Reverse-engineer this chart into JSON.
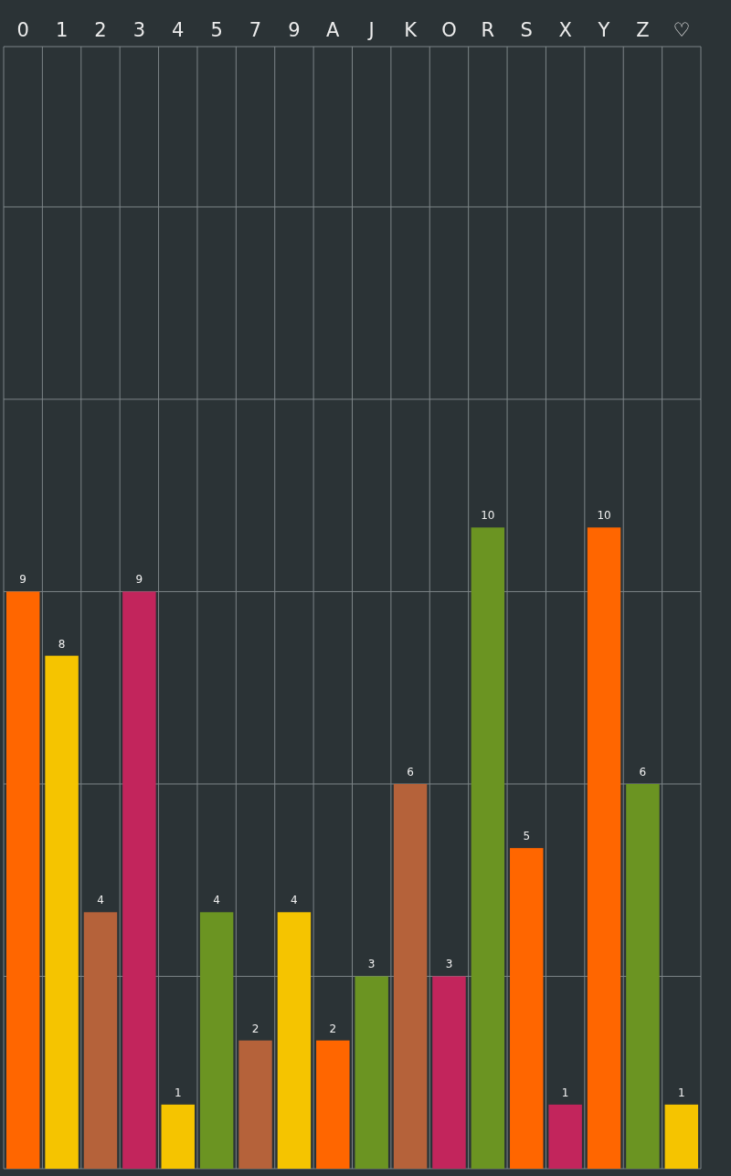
{
  "chart_data": {
    "type": "bar",
    "categories": [
      "0",
      "1",
      "2",
      "3",
      "4",
      "5",
      "7",
      "9",
      "A",
      "J",
      "K",
      "O",
      "R",
      "S",
      "X",
      "Y",
      "Z",
      "♡"
    ],
    "values": [
      9,
      8,
      4,
      9,
      1,
      4,
      2,
      4,
      2,
      3,
      6,
      3,
      10,
      5,
      1,
      10,
      6,
      1
    ],
    "colors": [
      "#ff6600",
      "#f5c400",
      "#b5623a",
      "#c2255c",
      "#f5c400",
      "#6b9422",
      "#b5623a",
      "#f5c400",
      "#ff6600",
      "#6b9422",
      "#b5623a",
      "#c2255c",
      "#6b9422",
      "#ff6600",
      "#c2255c",
      "#ff6600",
      "#6b9422",
      "#f5c400"
    ],
    "ylim": [
      0,
      17.5
    ],
    "yticks": [
      {
        "value": 0,
        "label": null
      },
      {
        "value": 3,
        "label": null
      },
      {
        "value": 6,
        "label": null
      },
      {
        "value": 9,
        "label": null
      },
      {
        "value": 12,
        "label": null
      },
      {
        "value": 15,
        "label": null
      }
    ],
    "tick_labels": "x",
    "grid": true,
    "data_labels": true
  }
}
